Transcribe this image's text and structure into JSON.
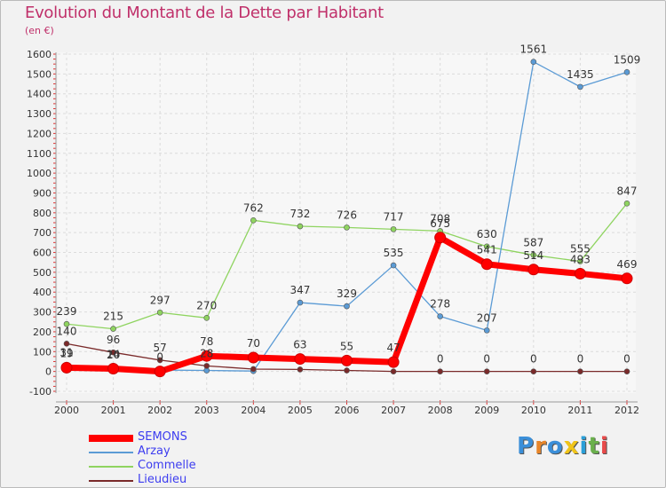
{
  "title": "Evolution du Montant de la Dette par Habitant",
  "subtitle": "(en €)",
  "logo": {
    "text": "Proxiti",
    "colors": [
      "#3b8fd9",
      "#e8862a",
      "#3b8fd9",
      "#f0c419",
      "#2a9fd8",
      "#6ab04c",
      "#e84a4a"
    ]
  },
  "chart_data": {
    "type": "line",
    "x": [
      "2000",
      "2001",
      "2002",
      "2003",
      "2004",
      "2005",
      "2006",
      "2007",
      "2008",
      "2009",
      "2010",
      "2011",
      "2012"
    ],
    "ylim": [
      -100,
      1600
    ],
    "yticks": [
      -100,
      0,
      100,
      200,
      300,
      400,
      500,
      600,
      700,
      800,
      900,
      1000,
      1100,
      1200,
      1300,
      1400,
      1500,
      1600
    ],
    "grid": true,
    "legend_position": "bottom-left",
    "series": [
      {
        "name": "SEMONS",
        "color": "#ff0000",
        "values": [
          19,
          14,
          0,
          78,
          70,
          63,
          55,
          47,
          675,
          541,
          514,
          493,
          469
        ],
        "labels": [
          "19",
          "14",
          "0",
          "78",
          "70",
          "63",
          "55",
          "47",
          "675",
          "541",
          "514",
          "493",
          "469"
        ]
      },
      {
        "name": "Arzay",
        "color": "#5b9bd5",
        "values": [
          31,
          20,
          7,
          5,
          2,
          347,
          329,
          535,
          278,
          207,
          1561,
          1435,
          1509
        ],
        "labels": [
          "31",
          "20",
          "",
          "",
          "",
          "347",
          "329",
          "535",
          "278",
          "207",
          "1561",
          "1435",
          "1509"
        ]
      },
      {
        "name": "Commelle",
        "color": "#8fd460",
        "values": [
          239,
          215,
          297,
          270,
          762,
          732,
          726,
          717,
          708,
          630,
          587,
          555,
          847
        ],
        "labels": [
          "239",
          "215",
          "297",
          "270",
          "762",
          "732",
          "726",
          "717",
          "708",
          "630",
          "587",
          "555",
          "847"
        ]
      },
      {
        "name": "Lieudieu",
        "color": "#7a2a2a",
        "values": [
          140,
          96,
          57,
          28,
          12,
          10,
          5,
          0,
          0,
          0,
          0,
          0,
          0
        ],
        "labels": [
          "140",
          "96",
          "57",
          "28",
          "",
          "",
          "",
          "",
          "0",
          "0",
          "0",
          "0",
          "0"
        ]
      }
    ]
  }
}
